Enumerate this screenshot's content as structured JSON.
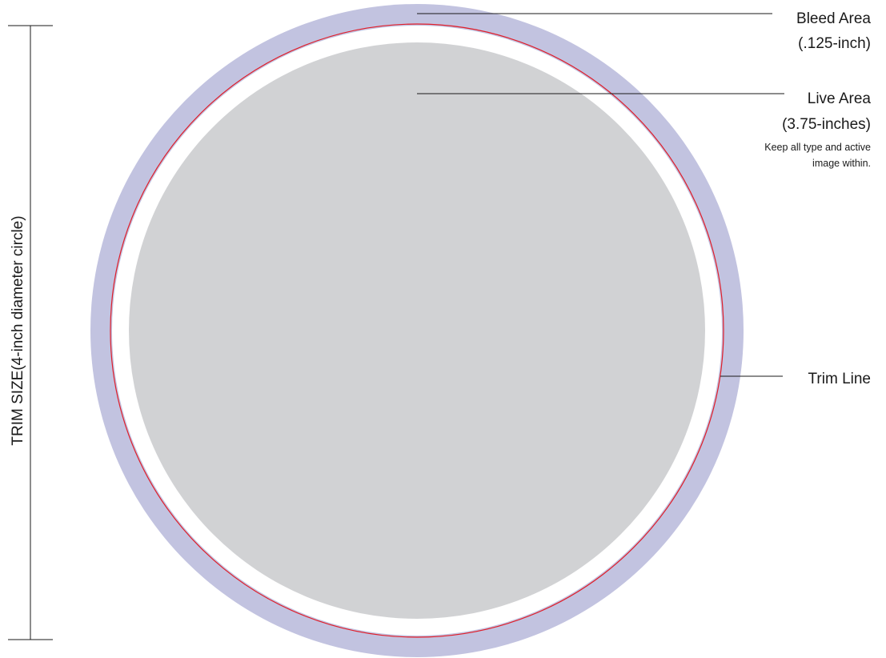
{
  "colors": {
    "bleed": "#c2c3e0",
    "trim_line": "#e01e2a",
    "safe_gap": "#ffffff",
    "live": "#d1d2d4",
    "leader": "#1a1a1a"
  },
  "labels": {
    "bleed_area": "Bleed Area",
    "bleed_size": "(.125-inch)",
    "live_area": "Live Area",
    "live_size": "(3.75-inches)",
    "live_note_line1": "Keep all type and active",
    "live_note_line2": "image within.",
    "trim_line": "Trim Line",
    "trim_size": "TRIM SIZE(4-inch diameter circle)"
  }
}
